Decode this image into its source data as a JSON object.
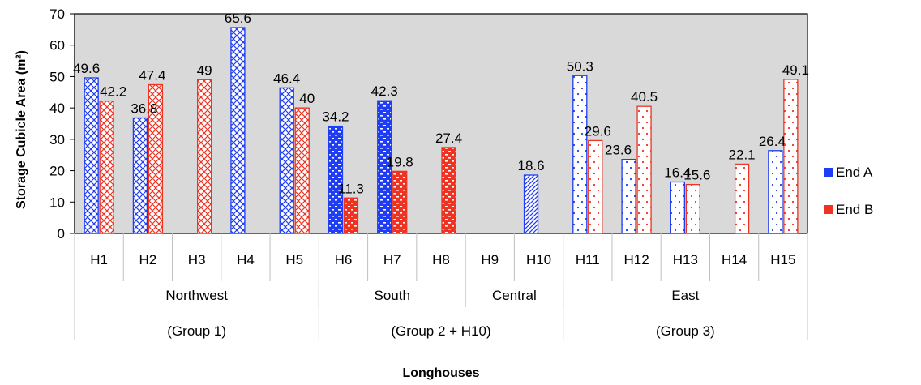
{
  "chart_data": {
    "type": "bar",
    "ylabel": "Storage Cubicle Area (m²)",
    "xlabel": "Longhouses",
    "ylim": [
      0,
      70
    ],
    "ytick_step": 10,
    "grid": false,
    "legend_position": "right",
    "categories": [
      "H1",
      "H2",
      "H3",
      "H4",
      "H5",
      "H6",
      "H7",
      "H8",
      "H9",
      "H10",
      "H11",
      "H12",
      "H13",
      "H14",
      "H15"
    ],
    "series": [
      {
        "name": "End A",
        "color": "#1f3df2",
        "values": [
          49.6,
          36.8,
          null,
          65.6,
          46.4,
          34.2,
          42.3,
          null,
          null,
          18.6,
          50.3,
          23.6,
          16.4,
          null,
          26.4
        ],
        "labels": [
          "49.6",
          "36.8",
          "",
          "65.6",
          "46.4",
          "34.2",
          "42.3",
          "",
          "",
          "18.6",
          "50.3",
          "23.6",
          "16.4",
          "",
          "26.4"
        ]
      },
      {
        "name": "End B",
        "color": "#ee3322",
        "values": [
          42.2,
          47.4,
          49,
          null,
          40,
          11.3,
          19.8,
          27.4,
          null,
          null,
          29.6,
          40.5,
          15.6,
          22.1,
          49.1
        ],
        "labels": [
          "42.2",
          "47.4",
          "49",
          "",
          "40",
          "11.3",
          "19.8",
          "27.4",
          "",
          "",
          "29.6",
          "40.5",
          "15.6",
          "22.1",
          "49.1"
        ]
      }
    ],
    "patterns": [
      "crosshatch",
      "crosshatch",
      "crosshatch",
      "crosshatch",
      "crosshatch",
      "bricks",
      "bricks",
      "bricks",
      "diagonal",
      "diagonal",
      "dots",
      "dots",
      "dots",
      "dots",
      "dots"
    ],
    "regions": [
      {
        "label": "Northwest",
        "span": [
          0,
          4
        ]
      },
      {
        "label": "South",
        "span": [
          5,
          7
        ]
      },
      {
        "label": "Central",
        "span": [
          8,
          9
        ]
      },
      {
        "label": "East",
        "span": [
          10,
          14
        ]
      }
    ],
    "groups": [
      {
        "label": "(Group 1)",
        "span": [
          0,
          4
        ]
      },
      {
        "label": "(Group 2 + H10)",
        "span": [
          5,
          9
        ]
      },
      {
        "label": "(Group 3)",
        "span": [
          10,
          14
        ]
      }
    ],
    "plot_background": "#d9d9d9"
  }
}
